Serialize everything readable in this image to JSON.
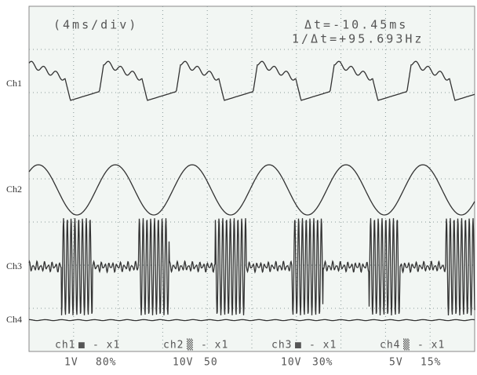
{
  "header": {
    "timebase": "(4ms/div)",
    "delta_t": "Δt=-10.45ms",
    "frequency": "1/Δt=+95.693Hz"
  },
  "channels": [
    {
      "label": "Ch1"
    },
    {
      "label": "Ch2"
    },
    {
      "label": "Ch3"
    },
    {
      "label": "Ch4"
    }
  ],
  "footer": [
    {
      "name": "ch1",
      "marker": "■",
      "coupling": "- x1",
      "volts": "1V",
      "percent": "80%"
    },
    {
      "name": "ch2",
      "marker": "▒",
      "coupling": "- x1",
      "volts": "10V",
      "percent": "50"
    },
    {
      "name": "ch3",
      "marker": "■",
      "coupling": "- x1",
      "volts": "10V",
      "percent": "30%"
    },
    {
      "name": "ch4",
      "marker": "▒",
      "coupling": "- x1",
      "volts": "5V",
      "percent": "15%"
    }
  ]
}
